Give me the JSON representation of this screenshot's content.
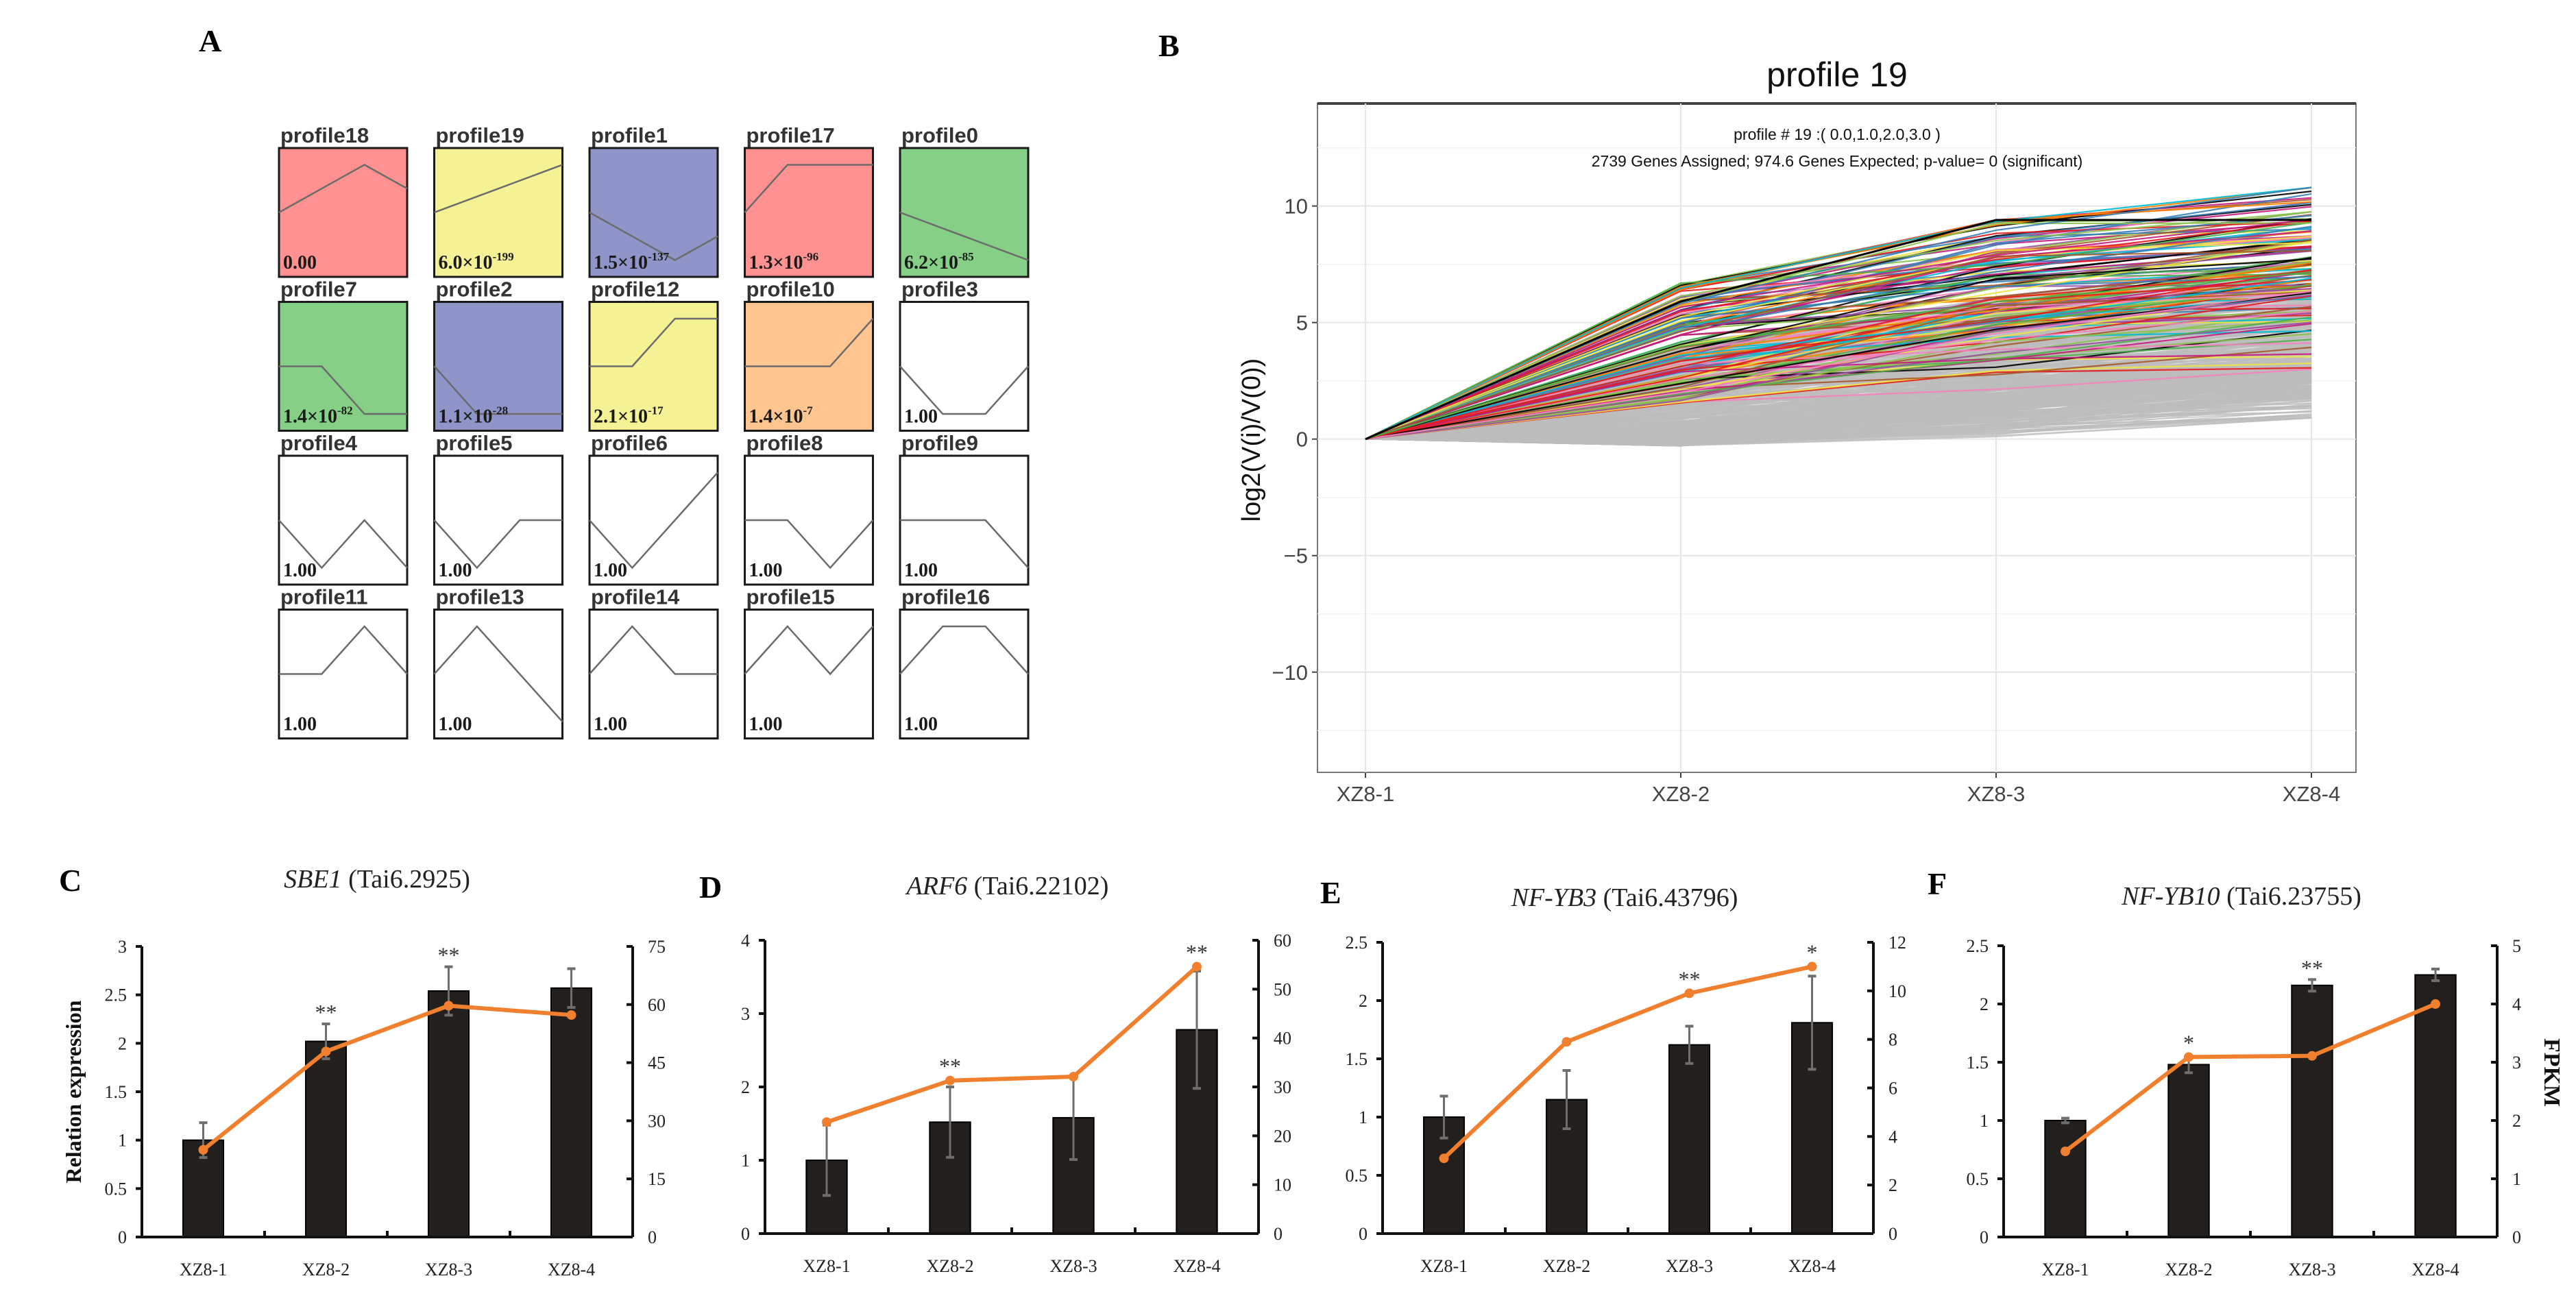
{
  "panel_labels": {
    "a": "A",
    "b": "B",
    "c": "C",
    "d": "D",
    "e": "E",
    "f": "F"
  },
  "profiles_grid": [
    {
      "name": "profile18",
      "p_base": "0.00",
      "p_exp": "",
      "color": "#ff9191",
      "model": [
        0,
        1,
        2,
        1
      ]
    },
    {
      "name": "profile19",
      "p_base": "6.0×10",
      "p_exp": "-199",
      "color": "#f5f195",
      "model": [
        0,
        1,
        2,
        3
      ]
    },
    {
      "name": "profile1",
      "p_base": "1.5×10",
      "p_exp": "-137",
      "color": "#8f94c9",
      "model": [
        0,
        -1,
        -2,
        -1
      ]
    },
    {
      "name": "profile17",
      "p_base": "1.3×10",
      "p_exp": "-96",
      "color": "#ff9191",
      "model": [
        0,
        2,
        2,
        2
      ]
    },
    {
      "name": "profile0",
      "p_base": "6.2×10",
      "p_exp": "-85",
      "color": "#86cf86",
      "model": [
        0,
        -1,
        -2,
        -3
      ]
    },
    {
      "name": "profile7",
      "p_base": "1.4×10",
      "p_exp": "-82",
      "color": "#86cf86",
      "model": [
        0,
        0,
        -1,
        -1
      ]
    },
    {
      "name": "profile2",
      "p_base": "1.1×10",
      "p_exp": "-28",
      "color": "#8f94c9",
      "model": [
        0,
        -1,
        -1,
        -1
      ]
    },
    {
      "name": "profile12",
      "p_base": "2.1×10",
      "p_exp": "-17",
      "color": "#f5f195",
      "model": [
        0,
        0,
        1,
        1
      ]
    },
    {
      "name": "profile10",
      "p_base": "1.4×10",
      "p_exp": "-7",
      "color": "#ffc591",
      "model": [
        0,
        0,
        0,
        1
      ]
    },
    {
      "name": "profile3",
      "p_base": "1.00",
      "p_exp": "",
      "color": "#ffffff",
      "model": [
        0,
        -1,
        -1,
        0
      ]
    },
    {
      "name": "profile4",
      "p_base": "1.00",
      "p_exp": "",
      "color": "#ffffff",
      "model": [
        0,
        -1,
        0,
        -1
      ]
    },
    {
      "name": "profile5",
      "p_base": "1.00",
      "p_exp": "",
      "color": "#ffffff",
      "model": [
        0,
        -1,
        0,
        0
      ]
    },
    {
      "name": "profile6",
      "p_base": "1.00",
      "p_exp": "",
      "color": "#ffffff",
      "model": [
        0,
        -1,
        0,
        1
      ]
    },
    {
      "name": "profile8",
      "p_base": "1.00",
      "p_exp": "",
      "color": "#ffffff",
      "model": [
        0,
        0,
        -1,
        0
      ]
    },
    {
      "name": "profile9",
      "p_base": "1.00",
      "p_exp": "",
      "color": "#ffffff",
      "model": [
        0,
        0,
        0,
        -1
      ]
    },
    {
      "name": "profile11",
      "p_base": "1.00",
      "p_exp": "",
      "color": "#ffffff",
      "model": [
        0,
        0,
        1,
        0
      ]
    },
    {
      "name": "profile13",
      "p_base": "1.00",
      "p_exp": "",
      "color": "#ffffff",
      "model": [
        0,
        1,
        0,
        -1
      ]
    },
    {
      "name": "profile14",
      "p_base": "1.00",
      "p_exp": "",
      "color": "#ffffff",
      "model": [
        0,
        1,
        0,
        0
      ]
    },
    {
      "name": "profile15",
      "p_base": "1.00",
      "p_exp": "",
      "color": "#ffffff",
      "model": [
        0,
        1,
        0,
        1
      ]
    },
    {
      "name": "profile16",
      "p_base": "1.00",
      "p_exp": "",
      "color": "#ffffff",
      "model": [
        0,
        1,
        1,
        0
      ]
    }
  ],
  "chart_data": [
    {
      "type": "line",
      "title": "profile 19",
      "annotation": [
        "profile # 19 :( 0.0,1.0,2.0,3.0 )",
        "2739 Genes Assigned; 974.6 Genes Expected; p-value= 0 (significant)"
      ],
      "categories": [
        "XZ8-1",
        "XZ8-2",
        "XZ8-3",
        "XZ8-4"
      ],
      "model_profile": [
        0,
        1,
        2,
        3
      ],
      "ylabel": "log2(V(i)/V(0))",
      "ylim": [
        -14.3,
        14.4
      ],
      "yticks": [
        -10,
        -5,
        0,
        5,
        10
      ],
      "ytick_labels": [
        "−10",
        "−5",
        "0",
        "5",
        "10"
      ],
      "grid": true,
      "series_range": {
        "XZ8-1": [
          0,
          0
        ],
        "XZ8-2": [
          -0.3,
          6.8
        ],
        "XZ8-3": [
          0.3,
          9.4
        ],
        "XZ8-4": [
          0.9,
          10.8
        ]
      },
      "line_colors": {
        "majority": "#bdbdbd",
        "highlight": [
          "#000000",
          "#e41a1c",
          "#377eb8",
          "#4daf4a",
          "#984ea3",
          "#ff7f00",
          "#f0e442",
          "#a65628",
          "#f781bf",
          "#00bcd4",
          "#8bc34a",
          "#c51b7d"
        ]
      }
    },
    {
      "type": "bar+line",
      "title_gene": "SBE1",
      "title_id": " (Tai6.2925)",
      "categories": [
        "XZ8-1",
        "XZ8-2",
        "XZ8-3",
        "XZ8-4"
      ],
      "bar_values": [
        1.0,
        2.02,
        2.54,
        2.57
      ],
      "bar_errors": [
        0.18,
        0.18,
        0.25,
        0.2
      ],
      "line_values": [
        22.5,
        47.9,
        59.7,
        57.3
      ],
      "significance": [
        "",
        "**",
        "**",
        ""
      ],
      "ylabel": "Relation expression",
      "y2label": "",
      "ylim": [
        0,
        3
      ],
      "yticks": [
        "0",
        "0.5",
        "1",
        "1.5",
        "2",
        "2.5",
        "3"
      ],
      "y2lim": [
        0,
        75
      ],
      "y2ticks": [
        "0",
        "15",
        "30",
        "45",
        "60",
        "75"
      ],
      "bar_color": "#231f1c",
      "line_color": "#f07f2e"
    },
    {
      "type": "bar+line",
      "title_gene": "ARF6",
      "title_id": " (Tai6.22102)",
      "categories": [
        "XZ8-1",
        "XZ8-2",
        "XZ8-3",
        "XZ8-4"
      ],
      "bar_values": [
        1.0,
        1.52,
        1.58,
        2.78
      ],
      "bar_errors": [
        0.48,
        0.48,
        0.57,
        0.8
      ],
      "line_values": [
        22.8,
        31.3,
        32.1,
        54.6
      ],
      "significance": [
        "",
        "**",
        "",
        "**"
      ],
      "ylabel": "",
      "y2label": "",
      "ylim": [
        0,
        4
      ],
      "yticks": [
        "0",
        "1",
        "2",
        "3",
        "4"
      ],
      "y2lim": [
        0,
        60
      ],
      "y2ticks": [
        "0",
        "10",
        "20",
        "30",
        "40",
        "50",
        "60"
      ],
      "bar_color": "#231f1c",
      "line_color": "#f07f2e"
    },
    {
      "type": "bar+line",
      "title_gene": "NF-YB3",
      "title_id": " (Tai6.43796)",
      "categories": [
        "XZ8-1",
        "XZ8-2",
        "XZ8-3",
        "XZ8-4"
      ],
      "bar_values": [
        1.0,
        1.15,
        1.62,
        1.81
      ],
      "bar_errors": [
        0.18,
        0.25,
        0.16,
        0.4
      ],
      "line_values": [
        3.1,
        7.9,
        9.9,
        11.0
      ],
      "significance": [
        "",
        "",
        "**",
        "*"
      ],
      "ylabel": "",
      "y2label": "",
      "ylim": [
        0,
        2.5
      ],
      "yticks": [
        "0",
        "0.5",
        "1",
        "1.5",
        "2",
        "2.5"
      ],
      "y2lim": [
        0,
        12
      ],
      "y2ticks": [
        "0",
        "2",
        "4",
        "6",
        "8",
        "10",
        "12"
      ],
      "bar_color": "#231f1c",
      "line_color": "#f07f2e"
    },
    {
      "type": "bar+line",
      "title_gene": "NF-YB10",
      "title_id": " (Tai6.23755)",
      "categories": [
        "XZ8-1",
        "XZ8-2",
        "XZ8-3",
        "XZ8-4"
      ],
      "bar_values": [
        1.0,
        1.48,
        2.16,
        2.25
      ],
      "bar_errors": [
        0.02,
        0.07,
        0.05,
        0.05
      ],
      "line_values": [
        1.47,
        3.09,
        3.11,
        4.0
      ],
      "significance": [
        "",
        "*",
        "**",
        ""
      ],
      "ylabel": "",
      "y2label": "FPKM",
      "ylim": [
        0,
        2.5
      ],
      "yticks": [
        "0",
        "0.5",
        "1",
        "1.5",
        "2",
        "2.5"
      ],
      "y2lim": [
        0,
        5
      ],
      "y2ticks": [
        "0",
        "1",
        "2",
        "3",
        "4",
        "5"
      ],
      "bar_color": "#231f1c",
      "line_color": "#f07f2e"
    }
  ]
}
